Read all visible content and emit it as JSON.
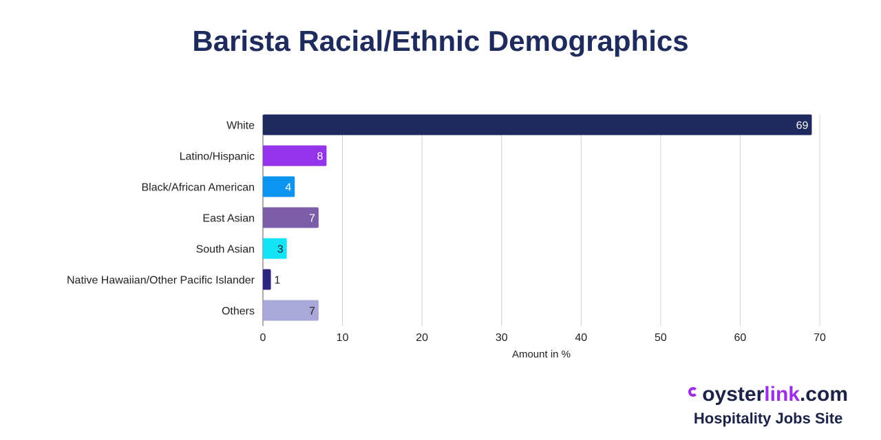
{
  "title": "Barista Racial/Ethnic Demographics",
  "brand": {
    "name_part1": "oyster",
    "name_part2": "link",
    "name_part3": ".com",
    "tagline": "Hospitality Jobs Site",
    "accent_color": "#9b2ee6"
  },
  "chart_data": {
    "type": "bar",
    "orientation": "horizontal",
    "categories": [
      "White",
      "Latino/Hispanic",
      "Black/African American",
      "East Asian",
      "South Asian",
      "Native Hawaiian/Other Pacific Islander",
      "Others"
    ],
    "values": [
      69,
      8,
      4,
      7,
      3,
      1,
      7
    ],
    "colors": [
      "#1e2a5e",
      "#9333ea",
      "#0b94f0",
      "#7b5ea7",
      "#13e4f5",
      "#2e2580",
      "#a9a8d8"
    ],
    "value_label_colors": [
      "#ffffff",
      "#ffffff",
      "#ffffff",
      "#ffffff",
      "#222222",
      "#222222",
      "#222222"
    ],
    "xlabel": "Amount in %",
    "xlim": [
      0,
      70
    ],
    "xticks": [
      0,
      10,
      20,
      30,
      40,
      50,
      60,
      70
    ],
    "grid": true
  }
}
